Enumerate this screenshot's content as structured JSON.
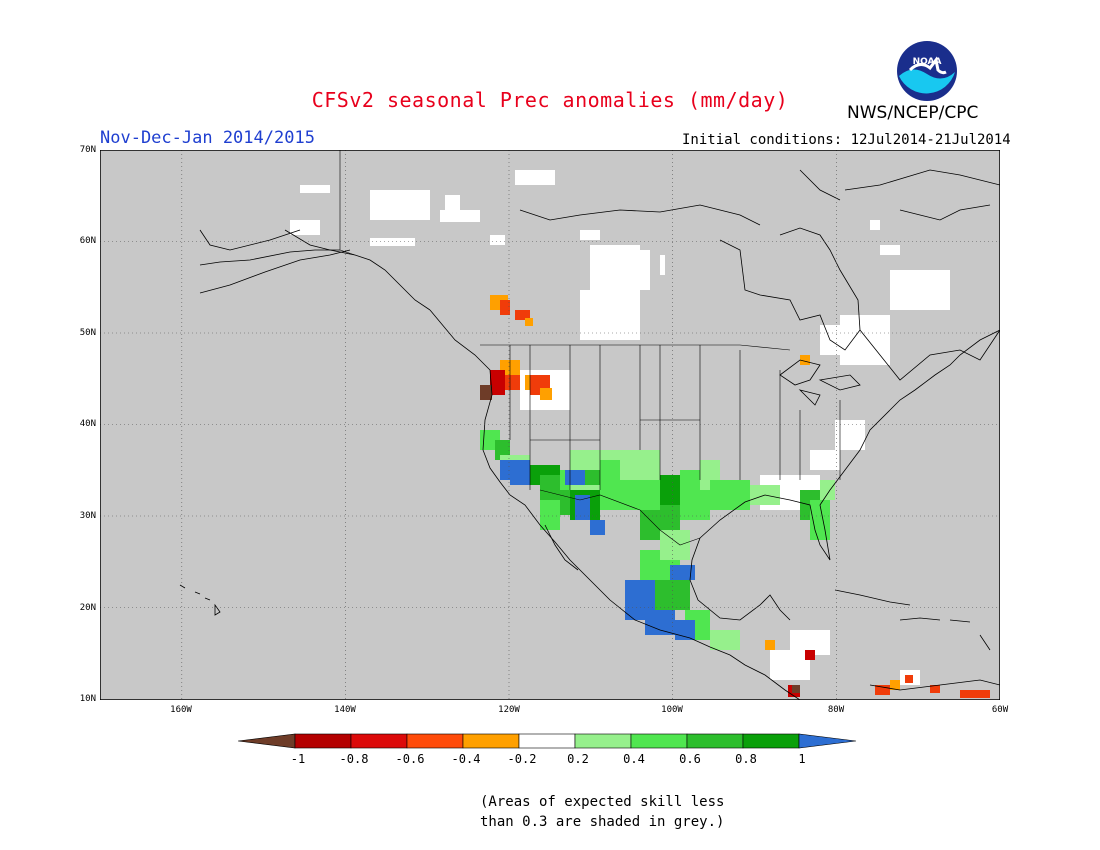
{
  "header": {
    "title": "CFSv2 seasonal Prec anomalies (mm/day)",
    "org": "NWS/NCEP/CPC",
    "season": "Nov-Dec-Jan 2014/2015",
    "initial_conditions": "Initial conditions: 12Jul2014-21Jul2014",
    "logo_text": "NOAA"
  },
  "map": {
    "lat_labels": [
      "70N",
      "60N",
      "50N",
      "40N",
      "30N",
      "20N",
      "10N"
    ],
    "lon_labels": [
      "160W",
      "140W",
      "120W",
      "100W",
      "80W",
      "60W"
    ],
    "lat_range": [
      10,
      70
    ],
    "lon_range": [
      -170,
      -60
    ],
    "colors": {
      "grey": "#c8c8c8",
      "white": "#ffffff",
      "lgreen": "#96f08c",
      "mgreen": "#50e650",
      "green": "#2dbe2d",
      "dgreen": "#0aa00a",
      "blue": "#2d6ed2",
      "orange": "#ffa000",
      "red": "#f03c0a",
      "dred": "#c80000",
      "brown": "#6e3c28"
    }
  },
  "colorbar": {
    "labels": [
      "-1",
      "-0.8",
      "-0.6",
      "-0.4",
      "-0.2",
      "0.2",
      "0.4",
      "0.6",
      "0.8",
      "1"
    ],
    "colors": [
      "#6e3c28",
      "#b40000",
      "#dc0a0a",
      "#ff4b0a",
      "#ffa000",
      "#ffffff",
      "#96f08c",
      "#50e650",
      "#2dbe2d",
      "#0aa00a",
      "#2d6ed2"
    ]
  },
  "note": {
    "line1": "(Areas of expected skill less",
    "line2": "than 0.3 are shaded in grey.)"
  }
}
